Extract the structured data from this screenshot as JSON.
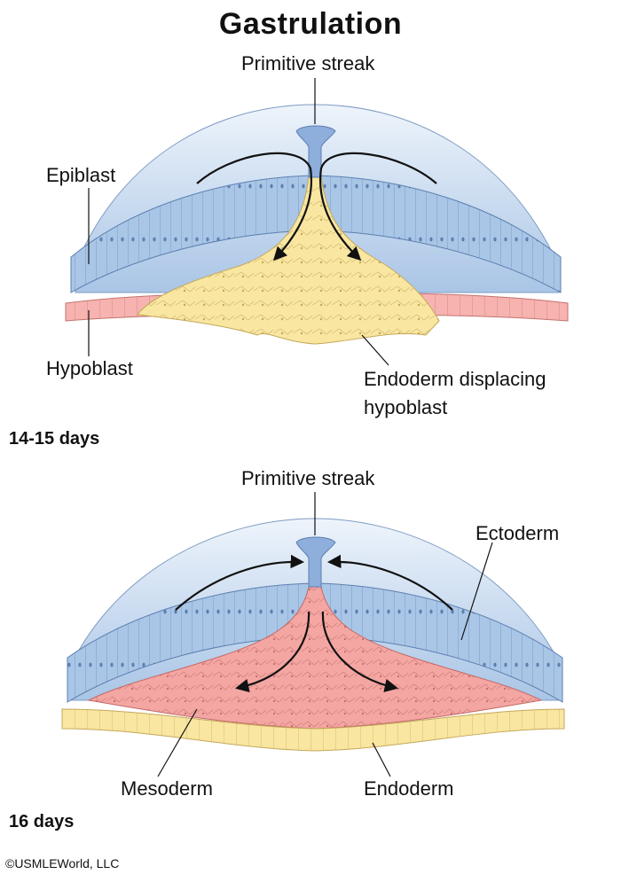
{
  "title": "Gastrulation",
  "panel_top": {
    "streak_label": "Primitive streak",
    "epiblast_label": "Epiblast",
    "hypoblast_label": "Hypoblast",
    "endoderm_label_line1": "Endoderm displacing",
    "endoderm_label_line2": "hypoblast",
    "stage": "14-15 days"
  },
  "panel_bottom": {
    "streak_label": "Primitive streak",
    "ectoderm_label": "Ectoderm",
    "mesoderm_label": "Mesoderm",
    "endoderm_label": "Endoderm",
    "stage": "16 days"
  },
  "copyright": "©USMLEWorld, LLC",
  "colors": {
    "amnion": "#bcd3ea",
    "epiblast": "#a9c6e6",
    "streak": "#8eaedc",
    "yellow_cells": "#f9e6a0",
    "pink_cells": "#f6b3b0",
    "mesoderm": "#f4a6a3"
  }
}
